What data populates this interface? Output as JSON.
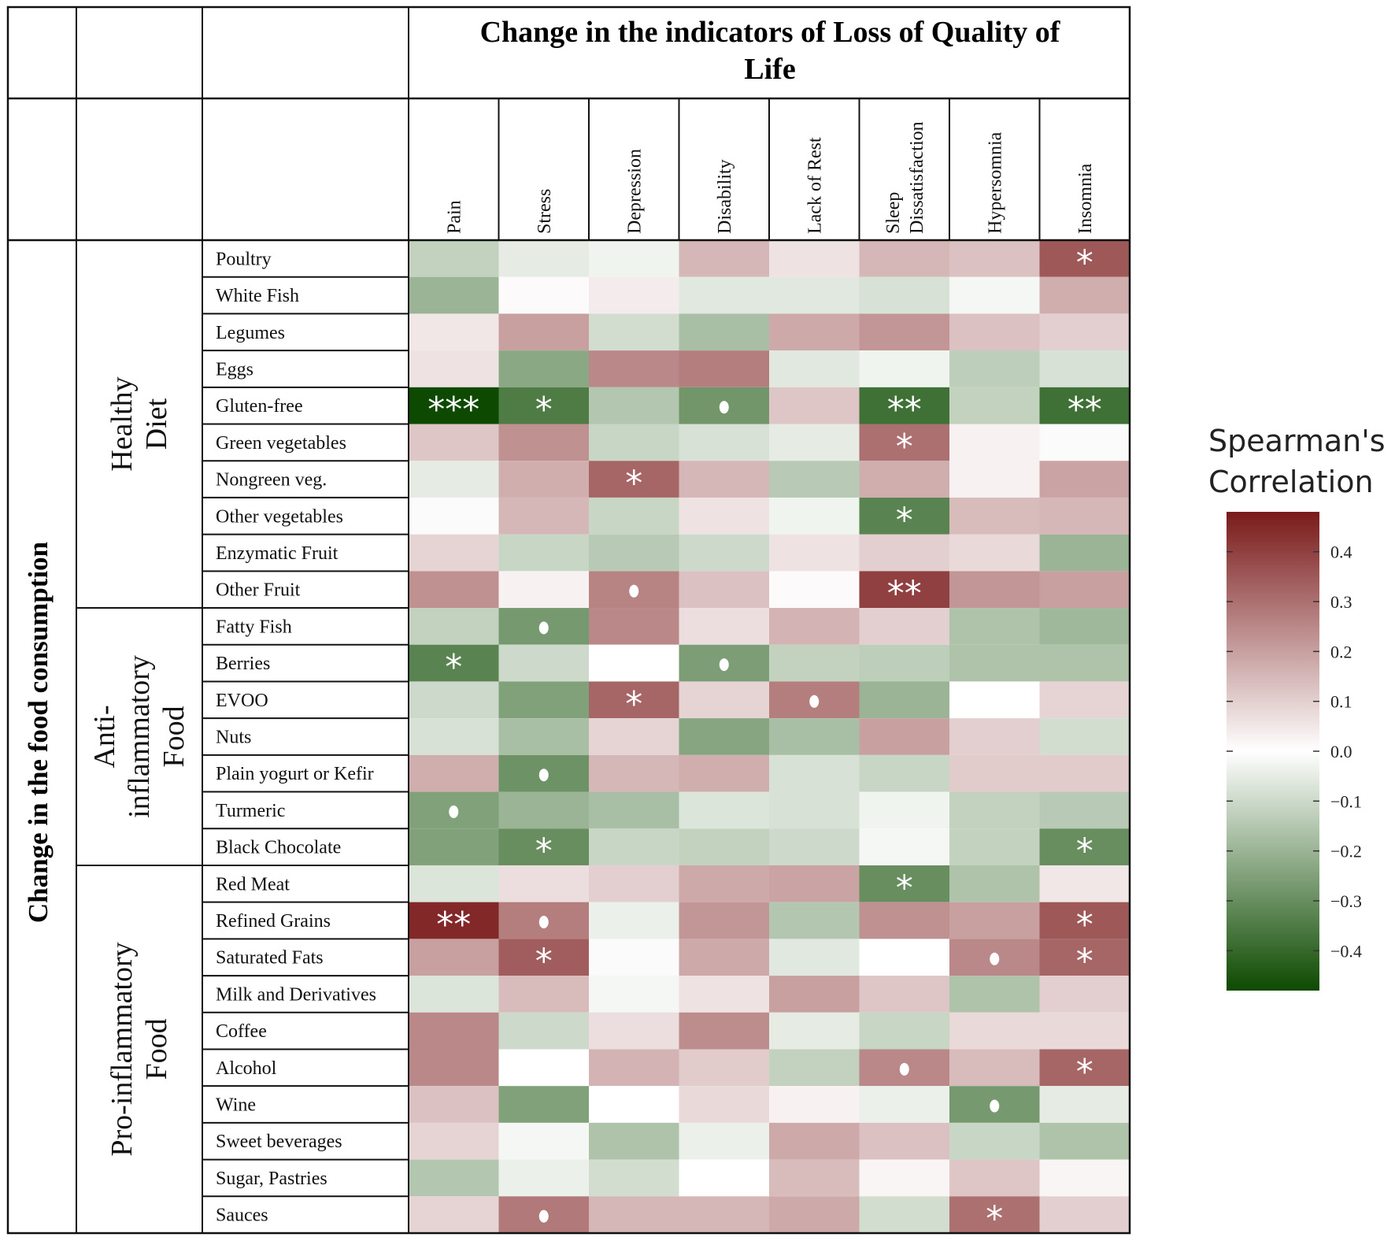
{
  "chart_data": {
    "type": "heatmap",
    "title": "Change in the indicators of Loss of Quality of Life",
    "row_axis_title": "Change in the food consumption",
    "columns": [
      "Pain",
      "Stress",
      "Depression",
      "Disability",
      "Lack of Rest",
      "Sleep Dissatisfaction",
      "Hypersomnia",
      "Insomnia"
    ],
    "groups": [
      {
        "name": "Healthy Diet",
        "rows": [
          "Poultry",
          "White Fish",
          "Legumes",
          "Eggs",
          "Gluten-free",
          "Green vegetables",
          "Nongreen veg.",
          "Other vegetables",
          "Enzymatic Fruit",
          "Other Fruit"
        ]
      },
      {
        "name": "Anti-inflammatory Food",
        "rows": [
          "Fatty Fish",
          "Berries",
          "EVOO",
          "Nuts",
          "Plain yogurt or Kefir",
          "Turmeric",
          "Black Chocolate"
        ]
      },
      {
        "name": "Pro-inflammatory Food",
        "rows": [
          "Red Meat",
          "Refined Grains",
          "Saturated Fats",
          "Milk and Derivatives",
          "Coffee",
          "Alcohol",
          "Wine",
          "Sweet beverages",
          "Sugar, Pastries",
          "Sauces"
        ]
      }
    ],
    "values": [
      [
        -0.12,
        -0.05,
        -0.03,
        0.15,
        0.06,
        0.15,
        0.13,
        0.35
      ],
      [
        -0.2,
        0.01,
        0.04,
        -0.06,
        -0.06,
        -0.08,
        -0.02,
        0.17
      ],
      [
        0.05,
        0.2,
        -0.09,
        -0.17,
        0.18,
        0.22,
        0.13,
        0.1
      ],
      [
        0.06,
        -0.23,
        0.25,
        0.27,
        -0.06,
        -0.03,
        -0.13,
        -0.08
      ],
      [
        -0.48,
        -0.35,
        -0.15,
        -0.28,
        0.12,
        -0.38,
        -0.12,
        -0.38
      ],
      [
        0.12,
        0.23,
        -0.11,
        -0.08,
        -0.05,
        0.3,
        0.03,
        -0.01
      ],
      [
        -0.05,
        0.17,
        0.32,
        0.15,
        -0.14,
        0.17,
        0.03,
        0.19
      ],
      [
        -0.01,
        0.15,
        -0.11,
        0.06,
        -0.03,
        -0.33,
        0.14,
        0.15
      ],
      [
        0.09,
        -0.11,
        -0.14,
        -0.1,
        0.06,
        0.1,
        0.08,
        -0.2
      ],
      [
        0.23,
        0.03,
        0.26,
        0.13,
        0.01,
        0.4,
        0.22,
        0.2
      ],
      [
        -0.12,
        -0.27,
        0.25,
        0.07,
        0.16,
        0.1,
        -0.16,
        -0.19
      ],
      [
        -0.33,
        -0.1,
        0.0,
        -0.26,
        -0.12,
        -0.13,
        -0.16,
        -0.16
      ],
      [
        -0.1,
        -0.25,
        0.32,
        0.09,
        0.27,
        -0.2,
        0.0,
        0.09
      ],
      [
        -0.08,
        -0.17,
        0.09,
        -0.24,
        -0.17,
        0.2,
        0.1,
        -0.09
      ],
      [
        0.17,
        -0.29,
        0.15,
        0.17,
        -0.08,
        -0.11,
        0.11,
        0.11
      ],
      [
        -0.25,
        -0.2,
        -0.17,
        -0.07,
        -0.08,
        -0.03,
        -0.12,
        -0.14
      ],
      [
        -0.25,
        -0.3,
        -0.11,
        -0.12,
        -0.1,
        -0.02,
        -0.12,
        -0.3
      ],
      [
        -0.07,
        0.07,
        0.1,
        0.18,
        0.19,
        -0.3,
        -0.16,
        0.05
      ],
      [
        0.45,
        0.27,
        -0.04,
        0.22,
        -0.15,
        0.23,
        0.2,
        0.35
      ],
      [
        0.2,
        0.34,
        -0.01,
        0.18,
        -0.06,
        0.0,
        0.25,
        0.32
      ],
      [
        -0.07,
        0.14,
        -0.02,
        0.06,
        0.2,
        0.12,
        -0.16,
        0.1
      ],
      [
        0.25,
        -0.1,
        0.07,
        0.24,
        -0.05,
        -0.11,
        0.08,
        0.08
      ],
      [
        0.25,
        0.0,
        0.16,
        0.11,
        -0.12,
        0.25,
        0.14,
        0.32
      ],
      [
        0.13,
        -0.25,
        0.0,
        0.08,
        0.03,
        -0.04,
        -0.27,
        -0.05
      ],
      [
        0.09,
        -0.02,
        -0.16,
        -0.04,
        0.18,
        0.13,
        -0.11,
        -0.16
      ],
      [
        -0.15,
        -0.04,
        -0.09,
        0.0,
        0.14,
        0.02,
        0.12,
        0.02
      ],
      [
        0.09,
        0.28,
        0.15,
        0.15,
        0.18,
        -0.09,
        0.3,
        0.1
      ]
    ],
    "significance": [
      [
        "",
        "",
        "",
        "",
        "",
        "",
        "",
        "*"
      ],
      [
        "",
        "",
        "",
        "",
        "",
        "",
        "",
        ""
      ],
      [
        "",
        "",
        "",
        "",
        "",
        "",
        "",
        ""
      ],
      [
        "",
        "",
        "",
        "",
        "",
        "",
        "",
        ""
      ],
      [
        "***",
        "*",
        "",
        "•",
        "",
        "**",
        "",
        "**"
      ],
      [
        "",
        "",
        "",
        "",
        "",
        "*",
        "",
        ""
      ],
      [
        "",
        "",
        "*",
        "",
        "",
        "",
        "",
        ""
      ],
      [
        "",
        "",
        "",
        "",
        "",
        "*",
        "",
        ""
      ],
      [
        "",
        "",
        "",
        "",
        "",
        "",
        "",
        ""
      ],
      [
        "",
        "",
        "•",
        "",
        "",
        "**",
        "",
        ""
      ],
      [
        "",
        "•",
        "",
        "",
        "",
        "",
        "",
        ""
      ],
      [
        "*",
        "",
        "",
        "•",
        "",
        "",
        "",
        ""
      ],
      [
        "",
        "",
        "*",
        "",
        "•",
        "",
        "",
        ""
      ],
      [
        "",
        "",
        "",
        "",
        "",
        "",
        "",
        ""
      ],
      [
        "",
        "•",
        "",
        "",
        "",
        "",
        "",
        ""
      ],
      [
        "•",
        "",
        "",
        "",
        "",
        "",
        "",
        ""
      ],
      [
        "",
        "*",
        "",
        "",
        "",
        "",
        "",
        "*"
      ],
      [
        "",
        "",
        "",
        "",
        "",
        "*",
        "",
        ""
      ],
      [
        "**",
        "•",
        "",
        "",
        "",
        "",
        "",
        "*"
      ],
      [
        "",
        "*",
        "",
        "",
        "",
        "",
        "•",
        "*"
      ],
      [
        "",
        "",
        "",
        "",
        "",
        "",
        "",
        ""
      ],
      [
        "",
        "",
        "",
        "",
        "",
        "",
        "",
        ""
      ],
      [
        "",
        "",
        "",
        "",
        "",
        "•",
        "",
        "*"
      ],
      [
        "",
        "",
        "",
        "",
        "",
        "",
        "•",
        ""
      ],
      [
        "",
        "",
        "",
        "",
        "",
        "",
        "",
        ""
      ],
      [
        "",
        "",
        "",
        "",
        "",
        "",
        "",
        ""
      ],
      [
        "",
        "•",
        "",
        "",
        "",
        "",
        "*",
        ""
      ]
    ],
    "colorbar": {
      "title_line1": "Spearman's",
      "title_line2": "Correlation",
      "range": [
        -0.48,
        0.48
      ],
      "ticks": [
        0.4,
        0.3,
        0.2,
        0.1,
        0.0,
        -0.1,
        -0.2,
        -0.3,
        -0.4
      ],
      "tick_labels": [
        "0.4",
        "0.3",
        "0.2",
        "0.1",
        "0.0",
        "−0.1",
        "−0.2",
        "−0.3",
        "−0.4"
      ],
      "colors": {
        "negative": "#0d4a00",
        "zero": "#ffffff",
        "positive": "#7a1a1a"
      }
    }
  }
}
